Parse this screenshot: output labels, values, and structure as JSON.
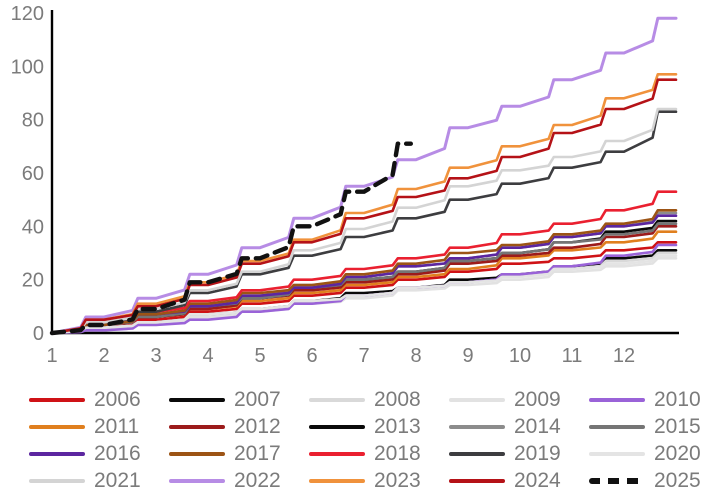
{
  "chart_data": {
    "type": "line",
    "subtype": "cumulative-step",
    "title": "",
    "xlabel": "",
    "ylabel": "",
    "x_ticks": [
      "1",
      "2",
      "3",
      "4",
      "5",
      "6",
      "7",
      "8",
      "9",
      "10",
      "11",
      "12"
    ],
    "y_ticks": [
      "0",
      "20",
      "40",
      "60",
      "80",
      "100",
      "120"
    ],
    "xlim": [
      1,
      13
    ],
    "ylim": [
      0,
      120
    ],
    "grid": false,
    "legend_position": "bottom",
    "axis_color": "#000000",
    "tick_color": "#7b7b7b",
    "series": [
      {
        "name": "2006",
        "color": "#cf1216",
        "width": 2.6,
        "dashed": false,
        "values": [
          2,
          5,
          8,
          11,
          14,
          17,
          20,
          23,
          26,
          28,
          31,
          34
        ]
      },
      {
        "name": "2007",
        "color": "#0a0a0a",
        "width": 2.6,
        "dashed": false,
        "values": [
          2,
          4,
          7,
          9,
          12,
          15,
          17,
          20,
          22,
          25,
          28,
          31
        ]
      },
      {
        "name": "2008",
        "color": "#d9d9d9",
        "width": 2.6,
        "dashed": false,
        "values": [
          2,
          4,
          7,
          9,
          12,
          14,
          17,
          19,
          22,
          24,
          27,
          30
        ]
      },
      {
        "name": "2009",
        "color": "#e2e2e2",
        "width": 2.6,
        "dashed": false,
        "values": [
          2,
          4,
          6,
          8,
          11,
          13,
          16,
          18,
          20,
          23,
          25,
          28
        ]
      },
      {
        "name": "2010",
        "color": "#9a63d8",
        "width": 2.6,
        "dashed": false,
        "values": [
          1,
          3,
          5,
          8,
          11,
          14,
          17,
          19,
          22,
          25,
          29,
          33
        ]
      },
      {
        "name": "2011",
        "color": "#e07f1e",
        "width": 2.6,
        "dashed": false,
        "values": [
          3,
          6,
          9,
          12,
          15,
          18,
          21,
          24,
          28,
          31,
          34,
          38
        ]
      },
      {
        "name": "2012",
        "color": "#9c1b1b",
        "width": 2.6,
        "dashed": false,
        "values": [
          3,
          6,
          9,
          13,
          16,
          19,
          22,
          26,
          29,
          32,
          36,
          40
        ]
      },
      {
        "name": "2013",
        "color": "#0a0a0a",
        "width": 2.6,
        "dashed": false,
        "values": [
          3,
          6,
          10,
          13,
          17,
          20,
          23,
          27,
          30,
          34,
          38,
          42
        ]
      },
      {
        "name": "2014",
        "color": "#8c8c8c",
        "width": 2.6,
        "dashed": false,
        "values": [
          3,
          7,
          11,
          14,
          18,
          21,
          25,
          28,
          32,
          36,
          40,
          45
        ]
      },
      {
        "name": "2015",
        "color": "#757575",
        "width": 2.6,
        "dashed": false,
        "values": [
          3,
          6,
          10,
          13,
          17,
          20,
          23,
          27,
          30,
          34,
          37,
          41
        ]
      },
      {
        "name": "2016",
        "color": "#5c26a0",
        "width": 2.6,
        "dashed": false,
        "values": [
          3,
          7,
          10,
          14,
          17,
          21,
          25,
          28,
          32,
          36,
          40,
          44
        ]
      },
      {
        "name": "2017",
        "color": "#9c5415",
        "width": 2.6,
        "dashed": false,
        "values": [
          3,
          7,
          11,
          15,
          18,
          22,
          26,
          30,
          33,
          37,
          41,
          46
        ]
      },
      {
        "name": "2018",
        "color": "#ea2030",
        "width": 2.6,
        "dashed": false,
        "values": [
          4,
          8,
          12,
          16,
          20,
          24,
          28,
          32,
          37,
          41,
          46,
          53
        ]
      },
      {
        "name": "2019",
        "color": "#3d3d40",
        "width": 2.6,
        "dashed": false,
        "values": [
          4,
          8,
          15,
          22,
          29,
          36,
          43,
          50,
          56,
          62,
          68,
          83
        ]
      },
      {
        "name": "2020",
        "color": "#e4e4e4",
        "width": 2.6,
        "dashed": false,
        "values": [
          2,
          4,
          7,
          9,
          12,
          14,
          17,
          19,
          21,
          24,
          26,
          29
        ]
      },
      {
        "name": "2021",
        "color": "#d4d4d4",
        "width": 2.6,
        "dashed": false,
        "values": [
          4,
          9,
          16,
          23,
          31,
          39,
          47,
          55,
          61,
          66,
          72,
          84
        ]
      },
      {
        "name": "2022",
        "color": "#b78ce5",
        "width": 3.0,
        "dashed": false,
        "values": [
          6,
          13,
          22,
          32,
          43,
          55,
          65,
          77,
          85,
          95,
          105,
          118
        ]
      },
      {
        "name": "2023",
        "color": "#f0923c",
        "width": 2.6,
        "dashed": false,
        "values": [
          5,
          11,
          19,
          27,
          35,
          45,
          54,
          62,
          70,
          78,
          88,
          97
        ]
      },
      {
        "name": "2024",
        "color": "#b51217",
        "width": 2.6,
        "dashed": false,
        "values": [
          5,
          10,
          18,
          26,
          34,
          43,
          51,
          58,
          66,
          75,
          84,
          95
        ]
      },
      {
        "name": "2025",
        "color": "#111111",
        "width": 4.4,
        "dashed": true,
        "partial_end_x": 7.9,
        "values": [
          3,
          9,
          19,
          28,
          40,
          53,
          71
        ]
      }
    ]
  },
  "legend": {
    "columns": 5,
    "order": [
      "2006",
      "2007",
      "2008",
      "2009",
      "2010",
      "2011",
      "2012",
      "2013",
      "2014",
      "2015",
      "2016",
      "2017",
      "2018",
      "2019",
      "2020",
      "2021",
      "2022",
      "2023",
      "2024",
      "2025"
    ]
  }
}
